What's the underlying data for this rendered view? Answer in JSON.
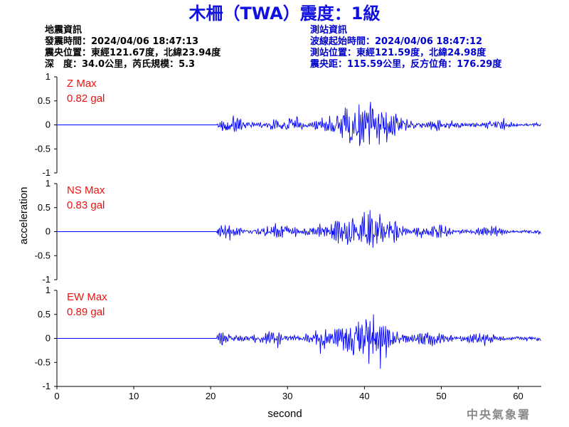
{
  "title": "木柵（TWA）震度：1級",
  "quake_info": {
    "heading": "地震資訊",
    "origin_time": "發震時間：2024/04/06 18:47:13",
    "epicenter": "震央位置：東經121.67度，北緯23.94度",
    "depth_magnitude": "深　度：34.0公里，芮氏規模：5.3"
  },
  "station_info": {
    "heading": "測站資訊",
    "arrival_time": "波線起始時間：2024/04/06 18:47:12",
    "station_position": "測站位置：東經121.59度，北緯24.98度",
    "distance_azimuth": "震央距：115.59公里，反方位角：176.29度"
  },
  "agency": "中央氣象署",
  "colors": {
    "title": "#1010e0",
    "station_text": "#0000cc",
    "trace": "#0000ff",
    "max_label": "#ee1111",
    "agency": "#8a8a8a"
  },
  "chart_data": {
    "type": "line",
    "xlabel": "second",
    "ylabel": "acceleration",
    "xlim": [
      0,
      63
    ],
    "xticks": [
      0,
      10,
      20,
      30,
      40,
      50,
      60
    ],
    "ylim": [
      -1,
      1
    ],
    "yticks": [
      1,
      0.5,
      0,
      -0.5,
      -1
    ],
    "ytick_labels": [
      "1",
      "0.5",
      "0",
      "-0.5",
      "-1"
    ],
    "signal_onset_s": 20.8,
    "strongest_shaking_s": [
      35,
      45
    ],
    "panels": [
      {
        "component": "Z",
        "max_label": "Z Max",
        "max_value": "0.82 gal"
      },
      {
        "component": "NS",
        "max_label": "NS Max",
        "max_value": "0.83 gal"
      },
      {
        "component": "EW",
        "max_label": "EW Max",
        "max_value": "0.89 gal"
      }
    ]
  }
}
